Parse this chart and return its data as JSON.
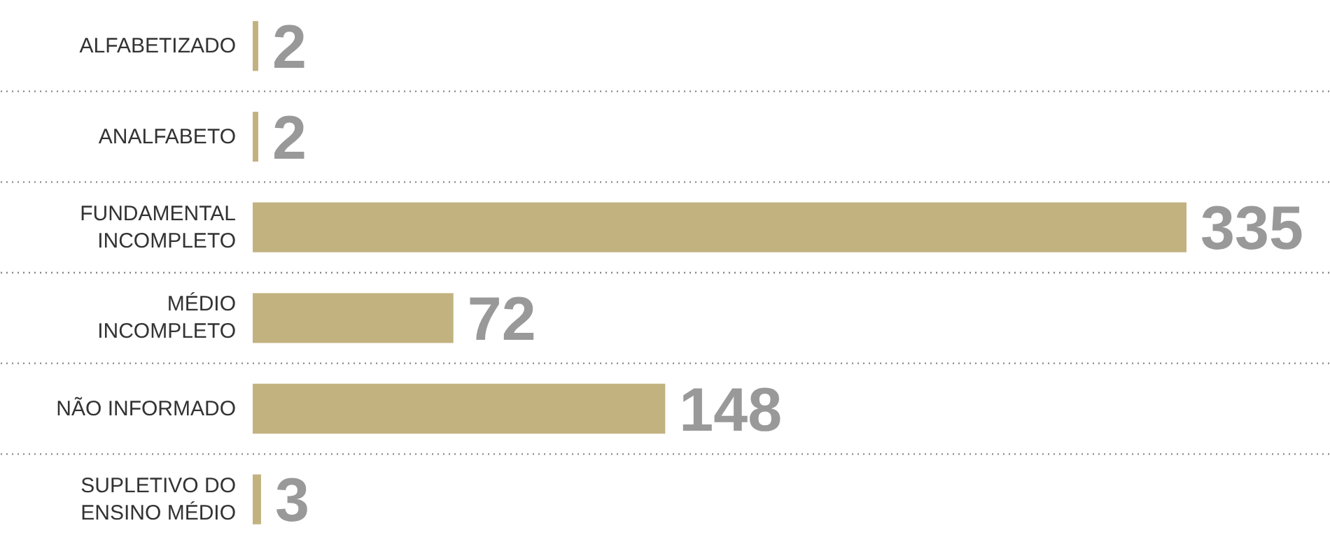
{
  "chart_data": {
    "type": "bar",
    "orientation": "horizontal",
    "categories": [
      "ALFABETIZADO",
      "ANALFABETO",
      "FUNDAMENTAL\nINCOMPLETO",
      "MÉDIO\nINCOMPLETO",
      "NÃO INFORMADO",
      "SUPLETIVO DO\nENSINO MÉDIO"
    ],
    "values": [
      2,
      2,
      335,
      72,
      148,
      3
    ],
    "color": "#c2b280",
    "data_labels": true,
    "grid": "y"
  }
}
